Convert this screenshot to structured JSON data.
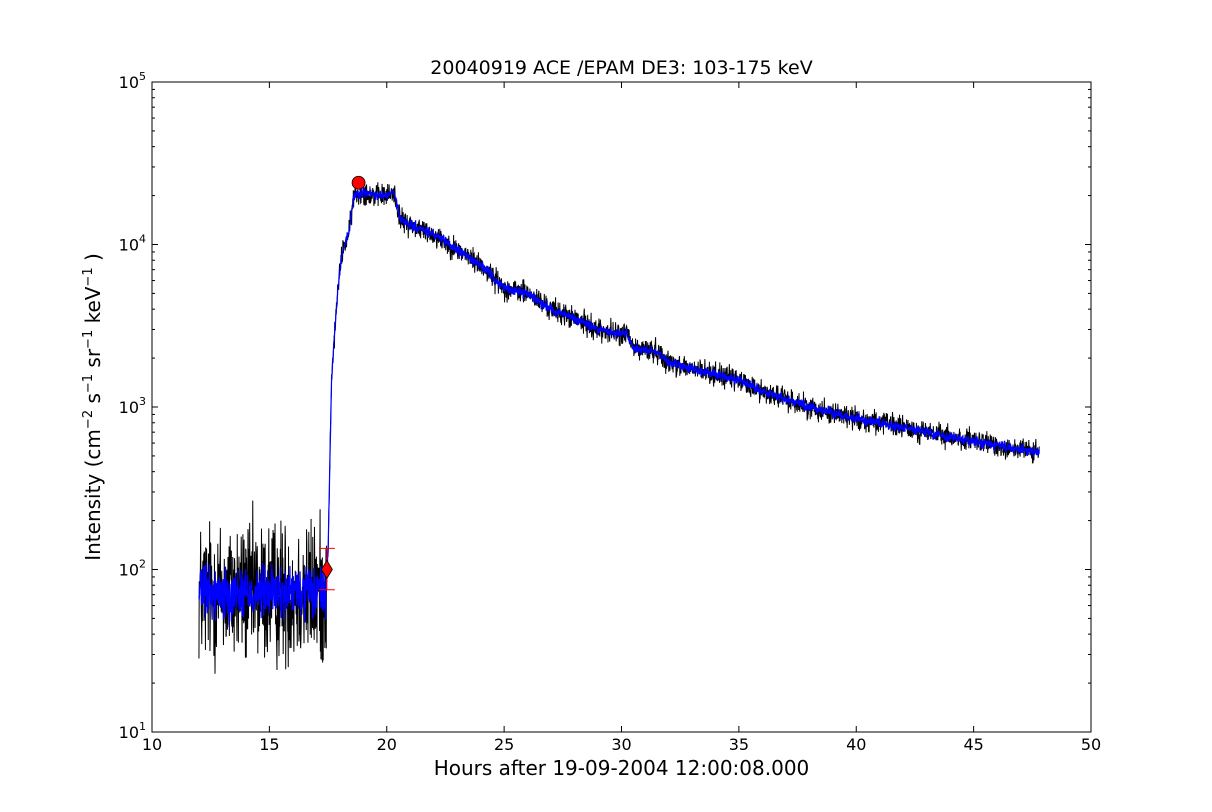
{
  "chart_data": {
    "type": "line",
    "title": "20040919 ACE /EPAM DE3: 103-175 keV",
    "xlabel": "Hours after 19-09-2004 12:00:08.000",
    "ylabel": {
      "prefix": "Intensity (cm",
      "parts": [
        {
          "sup": "−2",
          "text": " s"
        },
        {
          "sup": "−1",
          "text": " sr"
        },
        {
          "sup": "−1",
          "text": " keV"
        },
        {
          "sup": "−1",
          "text": " )"
        }
      ]
    },
    "xlim": [
      10,
      50
    ],
    "ylim": [
      10,
      100000
    ],
    "yscale": "log",
    "grid": false,
    "x_ticks": [
      10,
      15,
      20,
      25,
      30,
      35,
      40,
      45,
      50
    ],
    "y_ticks": [
      {
        "value": 10,
        "base": "10",
        "exp": "1"
      },
      {
        "value": 100,
        "base": "10",
        "exp": "2"
      },
      {
        "value": 1000,
        "base": "10",
        "exp": "3"
      },
      {
        "value": 10000,
        "base": "10",
        "exp": "4"
      },
      {
        "value": 100000,
        "base": "10",
        "exp": "5"
      }
    ],
    "series": [
      {
        "color": "#000000",
        "x_range": [
          12.0,
          47.8
        ],
        "noise_segments": [
          {
            "x": [
              12.0,
              17.45
            ],
            "amplitude_log10": 0.22
          },
          {
            "x": [
              17.45,
              47.8
            ],
            "amplitude_log10": 0.035
          }
        ],
        "profile": [
          [
            12.0,
            72
          ],
          [
            17.4,
            72
          ],
          [
            17.5,
            130
          ],
          [
            17.65,
            1500
          ],
          [
            17.9,
            5000
          ],
          [
            18.1,
            9000
          ],
          [
            18.4,
            12000
          ],
          [
            18.6,
            20000
          ],
          [
            19.0,
            21000
          ],
          [
            19.5,
            20000
          ],
          [
            20.0,
            20000
          ],
          [
            20.3,
            21000
          ],
          [
            20.6,
            14000
          ],
          [
            22,
            11500
          ],
          [
            24,
            7500
          ],
          [
            25,
            5400
          ],
          [
            26,
            5000
          ],
          [
            27,
            4000
          ],
          [
            28,
            3500
          ],
          [
            29,
            3000
          ],
          [
            30,
            2800
          ],
          [
            30.2,
            2900
          ],
          [
            30.5,
            2300
          ],
          [
            31.5,
            2200
          ],
          [
            32,
            1900
          ],
          [
            33,
            1700
          ],
          [
            34,
            1600
          ],
          [
            35,
            1450
          ],
          [
            36,
            1250
          ],
          [
            38,
            1000
          ],
          [
            40,
            850
          ],
          [
            42,
            750
          ],
          [
            44,
            650
          ],
          [
            46,
            580
          ],
          [
            47.8,
            520
          ]
        ]
      },
      {
        "color": "#0000ff",
        "x_range": [
          12.0,
          47.8
        ],
        "noise_segments": [
          {
            "x": [
              12.0,
              17.45
            ],
            "amplitude_log10": 0.08
          },
          {
            "x": [
              17.45,
              47.8
            ],
            "amplitude_log10": 0.015
          }
        ],
        "profile": [
          [
            12.0,
            72
          ],
          [
            17.4,
            72
          ],
          [
            17.5,
            130
          ],
          [
            17.65,
            1500
          ],
          [
            17.9,
            5000
          ],
          [
            18.1,
            9000
          ],
          [
            18.4,
            12000
          ],
          [
            18.6,
            20000
          ],
          [
            19.0,
            21000
          ],
          [
            19.5,
            20000
          ],
          [
            20.0,
            20000
          ],
          [
            20.3,
            21000
          ],
          [
            20.6,
            14000
          ],
          [
            22,
            11500
          ],
          [
            24,
            7500
          ],
          [
            25,
            5400
          ],
          [
            26,
            5000
          ],
          [
            27,
            4000
          ],
          [
            28,
            3500
          ],
          [
            29,
            3000
          ],
          [
            30,
            2800
          ],
          [
            30.2,
            2900
          ],
          [
            30.5,
            2300
          ],
          [
            31.5,
            2200
          ],
          [
            32,
            1900
          ],
          [
            33,
            1700
          ],
          [
            34,
            1600
          ],
          [
            35,
            1450
          ],
          [
            36,
            1250
          ],
          [
            38,
            1000
          ],
          [
            40,
            850
          ],
          [
            42,
            750
          ],
          [
            44,
            650
          ],
          [
            46,
            580
          ],
          [
            47.8,
            520
          ]
        ]
      }
    ],
    "markers": [
      {
        "kind": "onset-diamond",
        "x": 17.45,
        "y": 100,
        "color": "#ff0000",
        "error_low": 75,
        "error_high": 135
      },
      {
        "kind": "peak-circle",
        "x": 18.8,
        "y": 24000,
        "color": "#ff0000"
      }
    ]
  }
}
